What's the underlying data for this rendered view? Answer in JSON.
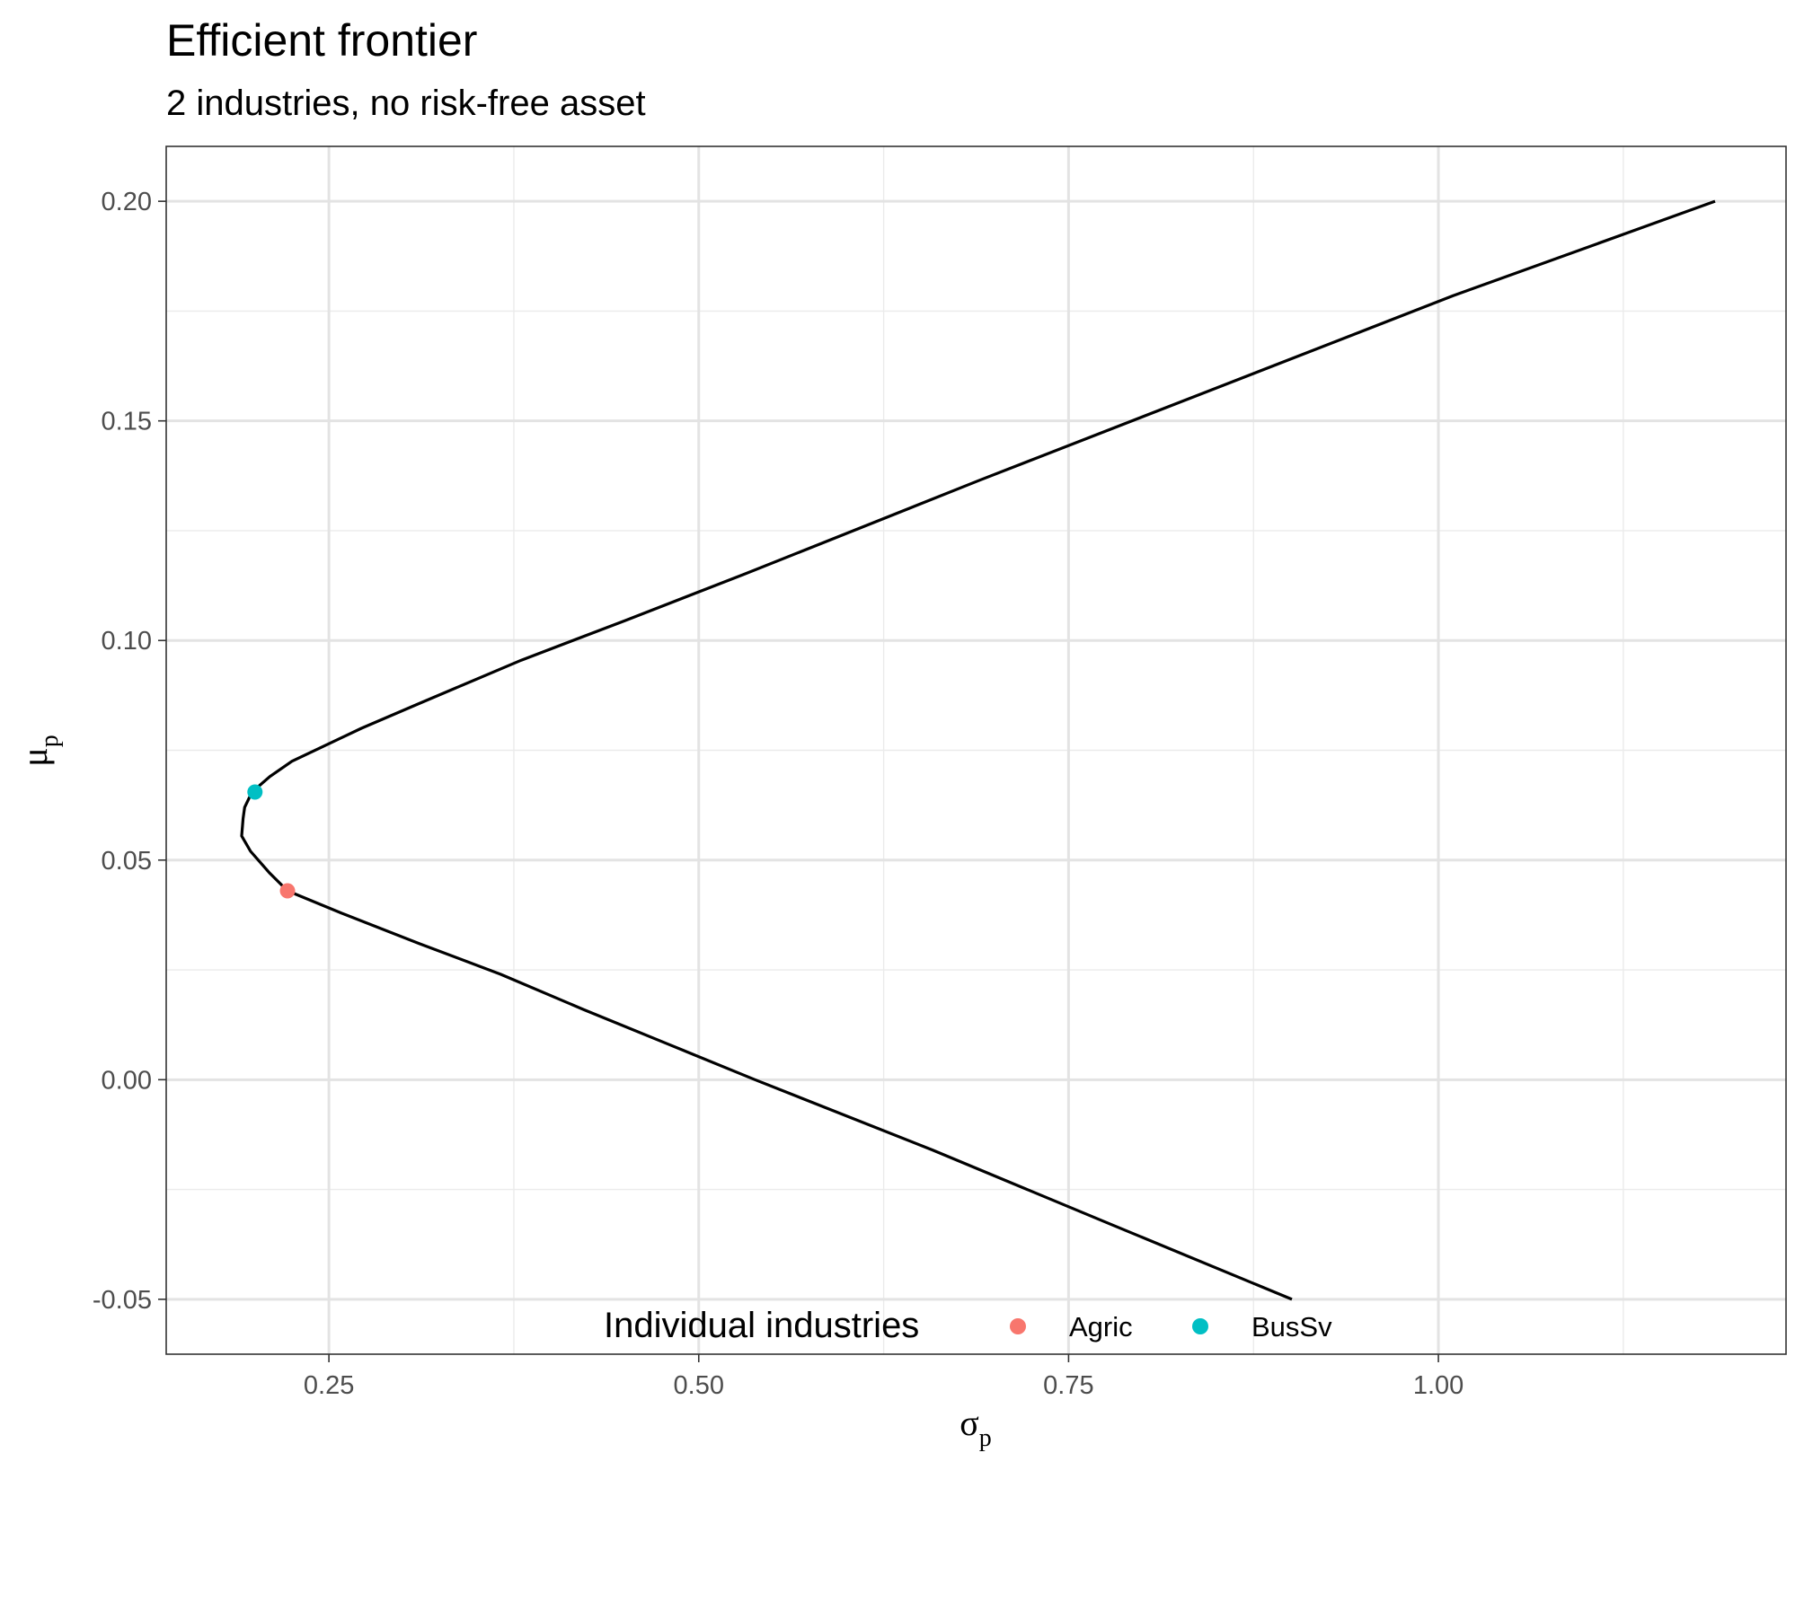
{
  "chart_data": {
    "type": "line",
    "title": "Efficient frontier",
    "subtitle": "2 industries, no risk-free asset",
    "xlabel": "σ",
    "xlabel_subscript": "p",
    "ylabel": "μ",
    "ylabel_subscript": "p",
    "xlim": [
      0.14,
      1.235
    ],
    "ylim": [
      -0.0625,
      0.2125
    ],
    "xticks": [
      0.25,
      0.5,
      0.75,
      1.0
    ],
    "xtick_labels": [
      "0.25",
      "0.50",
      "0.75",
      "1.00"
    ],
    "yticks": [
      -0.05,
      0.0,
      0.05,
      0.1,
      0.15,
      0.2
    ],
    "ytick_labels": [
      "-0.05",
      "0.00",
      "0.05",
      "0.10",
      "0.15",
      "0.20"
    ],
    "grid": true,
    "frontier": {
      "color": "#000000",
      "points": [
        [
          0.901,
          -0.05
        ],
        [
          0.779,
          -0.033
        ],
        [
          0.658,
          -0.016
        ],
        [
          0.538,
          0.0
        ],
        [
          0.48,
          0.008
        ],
        [
          0.422,
          0.016
        ],
        [
          0.366,
          0.024
        ],
        [
          0.311,
          0.031
        ],
        [
          0.258,
          0.038
        ],
        [
          0.222,
          0.043
        ],
        [
          0.21,
          0.047
        ],
        [
          0.197,
          0.052
        ],
        [
          0.191,
          0.0555
        ],
        [
          0.192,
          0.0595
        ],
        [
          0.193,
          0.062
        ],
        [
          0.198,
          0.0655
        ],
        [
          0.21,
          0.069
        ],
        [
          0.225,
          0.0725
        ],
        [
          0.25,
          0.0765
        ],
        [
          0.272,
          0.08
        ],
        [
          0.31,
          0.0855
        ],
        [
          0.38,
          0.0955
        ],
        [
          0.45,
          0.1045
        ],
        [
          0.53,
          0.115
        ],
        [
          0.69,
          0.1365
        ],
        [
          0.85,
          0.1575
        ],
        [
          1.01,
          0.1785
        ],
        [
          1.187,
          0.2
        ]
      ]
    },
    "series": [
      {
        "name": "Agric",
        "color": "#F8766D",
        "x": 0.222,
        "y": 0.043
      },
      {
        "name": "BusSv",
        "color": "#00BFC4",
        "x": 0.2,
        "y": 0.0655
      }
    ],
    "legend": {
      "title": "Individual industries",
      "position": "bottom"
    }
  }
}
